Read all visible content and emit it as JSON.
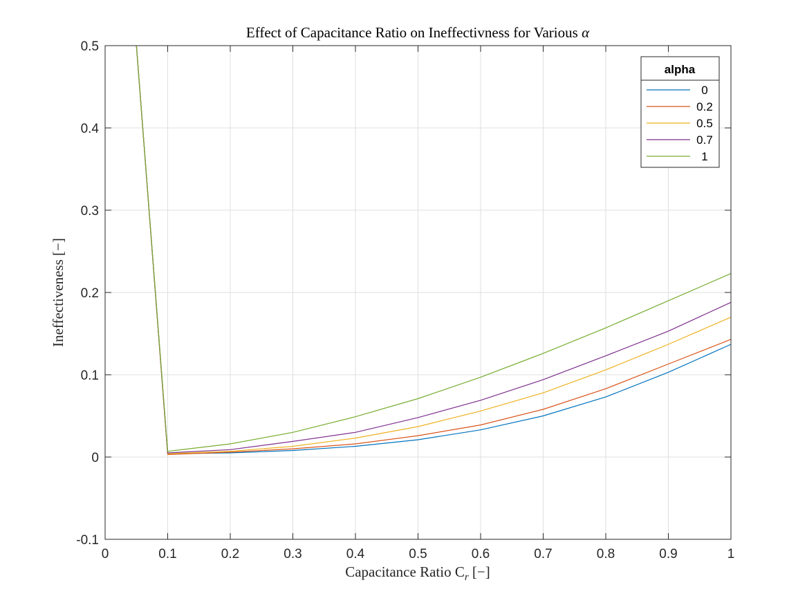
{
  "chart_data": {
    "type": "line",
    "title": "Effect of Capacitance Ratio on Ineffectivness for Various ",
    "title_symbol": "α",
    "xlabel": "Capacitance Ratio C",
    "xlabel_sub": "r",
    "xlabel_unit": " [−]",
    "ylabel": "Ineffectiveness [−]",
    "xlim": [
      0,
      1
    ],
    "ylim": [
      -0.1,
      0.5
    ],
    "grid": true,
    "x_ticks": [
      0,
      0.1,
      0.2,
      0.3,
      0.4,
      0.5,
      0.6,
      0.7,
      0.8,
      0.9,
      1
    ],
    "x_tick_labels": [
      "0",
      "0.1",
      "0.2",
      "0.3",
      "0.4",
      "0.5",
      "0.6",
      "0.7",
      "0.8",
      "0.9",
      "1"
    ],
    "y_ticks": [
      -0.1,
      0,
      0.1,
      0.2,
      0.3,
      0.4,
      0.5
    ],
    "y_tick_labels": [
      "-0.1",
      "0",
      "0.1",
      "0.2",
      "0.3",
      "0.4",
      "0.5"
    ],
    "legend": {
      "title": "alpha",
      "placement": "top-right"
    },
    "x": [
      0.05,
      0.1,
      0.2,
      0.3,
      0.4,
      0.5,
      0.6,
      0.7,
      0.8,
      0.9,
      1.0
    ],
    "series": [
      {
        "name": "0",
        "color": "#0072BD",
        "values": [
          0.5,
          0.004,
          0.005,
          0.008,
          0.013,
          0.021,
          0.033,
          0.05,
          0.073,
          0.103,
          0.137
        ]
      },
      {
        "name": "0.2",
        "color": "#D95319",
        "values": [
          0.5,
          0.003,
          0.006,
          0.01,
          0.016,
          0.026,
          0.039,
          0.058,
          0.083,
          0.113,
          0.143
        ]
      },
      {
        "name": "0.5",
        "color": "#EDB120",
        "values": [
          0.5,
          0.004,
          0.007,
          0.013,
          0.023,
          0.037,
          0.056,
          0.078,
          0.106,
          0.137,
          0.17
        ]
      },
      {
        "name": "0.7",
        "color": "#7E2F8E",
        "values": [
          0.5,
          0.005,
          0.009,
          0.019,
          0.03,
          0.048,
          0.069,
          0.094,
          0.123,
          0.153,
          0.188
        ]
      },
      {
        "name": "1",
        "color": "#77AC30",
        "values": [
          0.5,
          0.007,
          0.016,
          0.03,
          0.049,
          0.071,
          0.097,
          0.126,
          0.157,
          0.19,
          0.223
        ]
      }
    ]
  }
}
